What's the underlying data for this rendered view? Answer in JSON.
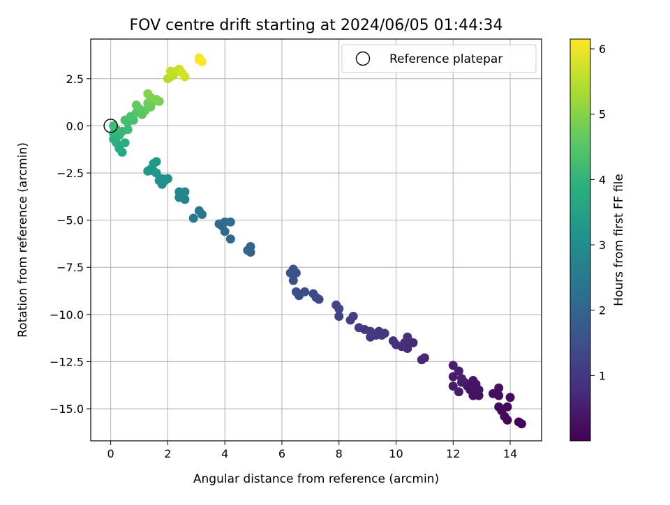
{
  "chart_data": {
    "type": "scatter",
    "title": "FOV centre drift starting at 2024/06/05 01:44:34",
    "xlabel": "Angular distance from reference (arcmin)",
    "ylabel": "Rotation from reference (arcmin)",
    "xlim": [
      -0.7,
      15.1
    ],
    "ylim": [
      -16.7,
      4.6
    ],
    "x_ticks": [
      0,
      2,
      4,
      6,
      8,
      10,
      12,
      14
    ],
    "y_ticks": [
      2.5,
      0.0,
      -2.5,
      -5.0,
      -7.5,
      -10.0,
      -12.5,
      -15.0
    ],
    "y_tick_labels": [
      "2.5",
      "0.0",
      "−2.5",
      "−5.0",
      "−7.5",
      "−10.0",
      "−12.5",
      "−15.0"
    ],
    "grid": true,
    "legend": {
      "placement": "top-right",
      "entries": [
        "Reference platepar"
      ]
    },
    "reference_point": {
      "x": 0,
      "y": 0,
      "name": "Reference platepar"
    },
    "colorbar": {
      "label": "Hours from first FF file",
      "colormap": "viridis",
      "range": [
        0.0,
        6.15
      ],
      "ticks": [
        1,
        2,
        3,
        4,
        5,
        6
      ]
    },
    "points": [
      {
        "x": 14.4,
        "y": -15.8,
        "h": 0.03
      },
      {
        "x": 14.3,
        "y": -15.7,
        "h": 0.05
      },
      {
        "x": 13.9,
        "y": -15.6,
        "h": 0.08
      },
      {
        "x": 13.8,
        "y": -15.4,
        "h": 0.1
      },
      {
        "x": 13.7,
        "y": -15.1,
        "h": 0.12
      },
      {
        "x": 13.9,
        "y": -14.9,
        "h": 0.14
      },
      {
        "x": 13.6,
        "y": -14.9,
        "h": 0.16
      },
      {
        "x": 14.0,
        "y": -14.4,
        "h": 0.18
      },
      {
        "x": 13.6,
        "y": -14.3,
        "h": 0.2
      },
      {
        "x": 13.4,
        "y": -14.2,
        "h": 0.22
      },
      {
        "x": 13.6,
        "y": -13.9,
        "h": 0.24
      },
      {
        "x": 12.9,
        "y": -14.3,
        "h": 0.26
      },
      {
        "x": 12.7,
        "y": -14.3,
        "h": 0.28
      },
      {
        "x": 12.9,
        "y": -14.0,
        "h": 0.3
      },
      {
        "x": 12.6,
        "y": -14.0,
        "h": 0.32
      },
      {
        "x": 12.5,
        "y": -13.8,
        "h": 0.34
      },
      {
        "x": 12.8,
        "y": -13.7,
        "h": 0.36
      },
      {
        "x": 12.7,
        "y": -13.5,
        "h": 0.38
      },
      {
        "x": 12.4,
        "y": -13.6,
        "h": 0.4
      },
      {
        "x": 12.2,
        "y": -14.1,
        "h": 0.42
      },
      {
        "x": 12.3,
        "y": -13.6,
        "h": 0.44
      },
      {
        "x": 12.0,
        "y": -13.8,
        "h": 0.46
      },
      {
        "x": 12.0,
        "y": -13.3,
        "h": 0.48
      },
      {
        "x": 12.2,
        "y": -13.0,
        "h": 0.5
      },
      {
        "x": 12.0,
        "y": -12.7,
        "h": 0.52
      },
      {
        "x": 12.3,
        "y": -13.4,
        "h": 0.54
      },
      {
        "x": 11.0,
        "y": -12.3,
        "h": 0.7
      },
      {
        "x": 10.9,
        "y": -12.4,
        "h": 0.72
      },
      {
        "x": 10.6,
        "y": -11.5,
        "h": 0.75
      },
      {
        "x": 10.4,
        "y": -11.8,
        "h": 0.78
      },
      {
        "x": 10.3,
        "y": -11.5,
        "h": 0.8
      },
      {
        "x": 10.2,
        "y": -11.7,
        "h": 0.82
      },
      {
        "x": 10.0,
        "y": -11.6,
        "h": 0.84
      },
      {
        "x": 10.4,
        "y": -11.2,
        "h": 0.86
      },
      {
        "x": 9.9,
        "y": -11.4,
        "h": 0.88
      },
      {
        "x": 9.6,
        "y": -11.0,
        "h": 0.92
      },
      {
        "x": 9.4,
        "y": -10.9,
        "h": 0.95
      },
      {
        "x": 9.5,
        "y": -11.1,
        "h": 0.97
      },
      {
        "x": 9.1,
        "y": -11.2,
        "h": 1.0
      },
      {
        "x": 9.3,
        "y": -11.1,
        "h": 1.02
      },
      {
        "x": 9.1,
        "y": -10.9,
        "h": 1.04
      },
      {
        "x": 8.9,
        "y": -10.8,
        "h": 1.06
      },
      {
        "x": 8.7,
        "y": -10.7,
        "h": 1.08
      },
      {
        "x": 8.5,
        "y": -10.1,
        "h": 1.14
      },
      {
        "x": 8.4,
        "y": -10.3,
        "h": 1.16
      },
      {
        "x": 8.0,
        "y": -10.1,
        "h": 1.2
      },
      {
        "x": 8.0,
        "y": -9.7,
        "h": 1.22
      },
      {
        "x": 7.9,
        "y": -9.5,
        "h": 1.24
      },
      {
        "x": 7.3,
        "y": -9.2,
        "h": 1.35
      },
      {
        "x": 7.2,
        "y": -9.1,
        "h": 1.37
      },
      {
        "x": 7.1,
        "y": -8.9,
        "h": 1.39
      },
      {
        "x": 6.8,
        "y": -8.8,
        "h": 1.42
      },
      {
        "x": 6.6,
        "y": -9.0,
        "h": 1.44
      },
      {
        "x": 6.5,
        "y": -8.8,
        "h": 1.46
      },
      {
        "x": 6.4,
        "y": -8.2,
        "h": 1.52
      },
      {
        "x": 6.5,
        "y": -7.8,
        "h": 1.54
      },
      {
        "x": 6.3,
        "y": -7.8,
        "h": 1.56
      },
      {
        "x": 6.4,
        "y": -7.6,
        "h": 1.58
      },
      {
        "x": 4.9,
        "y": -6.7,
        "h": 1.95
      },
      {
        "x": 4.8,
        "y": -6.6,
        "h": 1.97
      },
      {
        "x": 4.9,
        "y": -6.4,
        "h": 1.99
      },
      {
        "x": 4.2,
        "y": -6.0,
        "h": 2.1
      },
      {
        "x": 4.0,
        "y": -5.6,
        "h": 2.13
      },
      {
        "x": 3.9,
        "y": -5.3,
        "h": 2.15
      },
      {
        "x": 3.8,
        "y": -5.2,
        "h": 2.17
      },
      {
        "x": 4.0,
        "y": -5.1,
        "h": 2.19
      },
      {
        "x": 4.2,
        "y": -5.1,
        "h": 2.21
      },
      {
        "x": 3.2,
        "y": -4.7,
        "h": 2.4
      },
      {
        "x": 3.1,
        "y": -4.5,
        "h": 2.42
      },
      {
        "x": 2.9,
        "y": -4.9,
        "h": 2.44
      },
      {
        "x": 2.6,
        "y": -3.9,
        "h": 2.7
      },
      {
        "x": 2.4,
        "y": -3.8,
        "h": 2.72
      },
      {
        "x": 2.5,
        "y": -3.6,
        "h": 2.74
      },
      {
        "x": 2.6,
        "y": -3.5,
        "h": 2.76
      },
      {
        "x": 2.4,
        "y": -3.5,
        "h": 2.78
      },
      {
        "x": 1.8,
        "y": -3.1,
        "h": 3.0
      },
      {
        "x": 1.9,
        "y": -2.9,
        "h": 3.02
      },
      {
        "x": 1.7,
        "y": -2.9,
        "h": 3.04
      },
      {
        "x": 2.0,
        "y": -2.8,
        "h": 3.06
      },
      {
        "x": 1.8,
        "y": -2.8,
        "h": 3.08
      },
      {
        "x": 1.6,
        "y": -2.5,
        "h": 3.2
      },
      {
        "x": 1.5,
        "y": -2.4,
        "h": 3.22
      },
      {
        "x": 1.3,
        "y": -2.4,
        "h": 3.24
      },
      {
        "x": 1.4,
        "y": -2.3,
        "h": 3.26
      },
      {
        "x": 1.5,
        "y": -2.0,
        "h": 3.28
      },
      {
        "x": 1.6,
        "y": -1.9,
        "h": 3.3
      },
      {
        "x": 0.4,
        "y": -1.4,
        "h": 3.7
      },
      {
        "x": 0.3,
        "y": -1.2,
        "h": 3.75
      },
      {
        "x": 0.5,
        "y": -0.9,
        "h": 3.8
      },
      {
        "x": 0.2,
        "y": -0.9,
        "h": 3.85
      },
      {
        "x": 0.1,
        "y": -0.7,
        "h": 3.9
      },
      {
        "x": 0.3,
        "y": -0.5,
        "h": 3.95
      },
      {
        "x": 0.1,
        "y": -0.4,
        "h": 4.0
      },
      {
        "x": 0.4,
        "y": -0.3,
        "h": 4.05
      },
      {
        "x": 0.2,
        "y": -0.2,
        "h": 4.1
      },
      {
        "x": 0.6,
        "y": -0.2,
        "h": 4.15
      },
      {
        "x": 0.1,
        "y": 0.0,
        "h": 4.2
      },
      {
        "x": 0.6,
        "y": 0.2,
        "h": 4.25
      },
      {
        "x": 0.5,
        "y": 0.3,
        "h": 4.3
      },
      {
        "x": 0.8,
        "y": 0.3,
        "h": 4.35
      },
      {
        "x": 0.7,
        "y": 0.5,
        "h": 4.4
      },
      {
        "x": 0.9,
        "y": 0.7,
        "h": 4.45
      },
      {
        "x": 1.1,
        "y": 0.6,
        "h": 4.5
      },
      {
        "x": 1.0,
        "y": 0.9,
        "h": 4.55
      },
      {
        "x": 1.2,
        "y": 0.8,
        "h": 4.6
      },
      {
        "x": 0.9,
        "y": 1.1,
        "h": 4.65
      },
      {
        "x": 1.4,
        "y": 1.0,
        "h": 4.7
      },
      {
        "x": 1.3,
        "y": 1.2,
        "h": 4.75
      },
      {
        "x": 1.5,
        "y": 1.3,
        "h": 4.8
      },
      {
        "x": 1.7,
        "y": 1.3,
        "h": 4.85
      },
      {
        "x": 1.4,
        "y": 1.5,
        "h": 4.9
      },
      {
        "x": 1.6,
        "y": 1.4,
        "h": 4.95
      },
      {
        "x": 1.3,
        "y": 1.7,
        "h": 5.0
      },
      {
        "x": 2.0,
        "y": 2.5,
        "h": 5.4
      },
      {
        "x": 2.1,
        "y": 2.6,
        "h": 5.45
      },
      {
        "x": 2.2,
        "y": 2.7,
        "h": 5.5
      },
      {
        "x": 2.3,
        "y": 2.9,
        "h": 5.55
      },
      {
        "x": 2.1,
        "y": 2.9,
        "h": 5.6
      },
      {
        "x": 2.4,
        "y": 3.0,
        "h": 5.65
      },
      {
        "x": 2.6,
        "y": 2.6,
        "h": 5.7
      },
      {
        "x": 2.5,
        "y": 2.8,
        "h": 5.75
      },
      {
        "x": 3.1,
        "y": 3.6,
        "h": 6.05
      },
      {
        "x": 3.1,
        "y": 3.5,
        "h": 6.1
      },
      {
        "x": 3.2,
        "y": 3.4,
        "h": 6.12
      }
    ]
  }
}
